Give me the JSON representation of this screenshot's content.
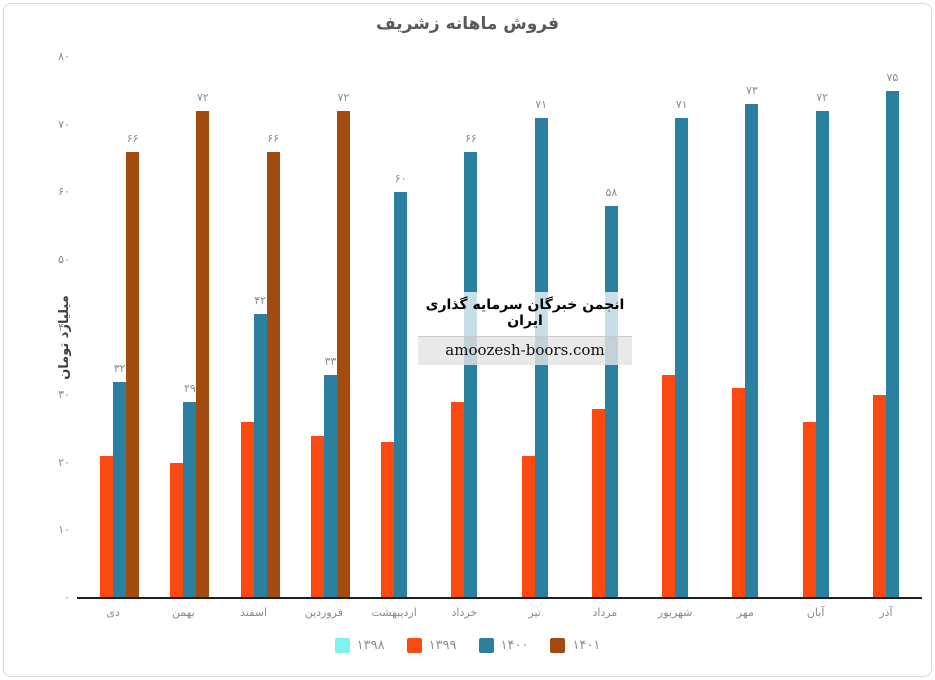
{
  "title": "فروش ماهانه زشریف",
  "watermark": {
    "line1": "انجمن خبرگان سرمایه گذاری ایران",
    "line2": "amoozesh-boors.com"
  },
  "chart_data": {
    "type": "bar",
    "title": "فروش ماهانه زشریف",
    "xlabel": "",
    "ylabel": "میلیارد تومان",
    "ylim": [
      0,
      80
    ],
    "grid": false,
    "legend_position": "bottom",
    "categories": [
      "دی",
      "بهمن",
      "اسفند",
      "فروردین",
      "اردیبهشت",
      "خرداد",
      "تیر",
      "مرداد",
      "شهریور",
      "مهر",
      "آبان",
      "آذر"
    ],
    "y_ticks": {
      "values": [
        0,
        10,
        20,
        30,
        40,
        50,
        60,
        70,
        80
      ],
      "labels": [
        "۰",
        "۱۰",
        "۲۰",
        "۳۰",
        "۴۰",
        "۵۰",
        "۶۰",
        "۷۰",
        "۸۰"
      ]
    },
    "series": [
      {
        "name": "۱۳۹۸",
        "color": "#7ff3f1",
        "values": [
          null,
          null,
          null,
          null,
          null,
          null,
          null,
          null,
          null,
          null,
          null,
          null
        ],
        "labels": [
          null,
          null,
          null,
          null,
          null,
          null,
          null,
          null,
          null,
          null,
          null,
          null
        ]
      },
      {
        "name": "۱۳۹۹",
        "color": "#fb4a11",
        "values": [
          21,
          20,
          26,
          24,
          23,
          29,
          21,
          28,
          33,
          31,
          26,
          30
        ],
        "labels": [
          null,
          null,
          null,
          null,
          null,
          null,
          null,
          null,
          null,
          null,
          null,
          null
        ]
      },
      {
        "name": "۱۴۰۰",
        "color": "#2b80a0",
        "values": [
          32,
          29,
          42,
          33,
          60,
          66,
          71,
          58,
          71,
          73,
          72,
          75
        ],
        "labels": [
          "۳۲",
          "۲۹",
          "۴۲",
          "۳۳",
          "۶۰",
          "۶۶",
          "۷۱",
          "۵۸",
          "۷۱",
          "۷۳",
          "۷۲",
          "۷۵"
        ]
      },
      {
        "name": "۱۴۰۱",
        "color": "#a34b10",
        "values": [
          66,
          72,
          66,
          72,
          null,
          null,
          null,
          null,
          null,
          null,
          null,
          null
        ],
        "labels": [
          "۶۶",
          "۷۲",
          "۶۶",
          "۷۲",
          null,
          null,
          null,
          null,
          null,
          null,
          null,
          null
        ]
      }
    ]
  }
}
